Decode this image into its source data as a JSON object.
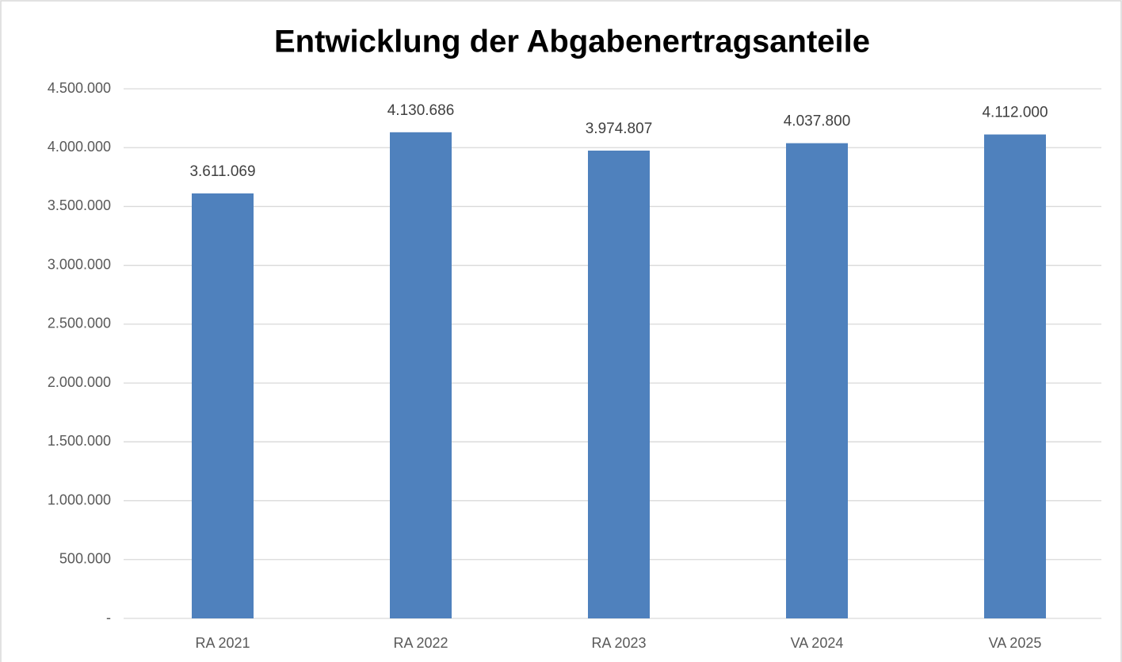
{
  "chart_data": {
    "type": "bar",
    "title": "Entwicklung der Abgabenertragsanteile",
    "categories": [
      "RA 2021",
      "RA 2022",
      "RA 2023",
      "VA 2024",
      "VA 2025"
    ],
    "values": [
      3611069,
      4130686,
      3974807,
      4037800,
      4112000
    ],
    "value_labels": [
      "3.611.069",
      "4.130.686",
      "3.974.807",
      "4.037.800",
      "4.112.000"
    ],
    "color": "#4f81bd",
    "ylim": [
      0,
      4500000
    ],
    "yticks": [
      {
        "value": 0,
        "label": "-"
      },
      {
        "value": 500000,
        "label": "500.000"
      },
      {
        "value": 1000000,
        "label": "1.000.000"
      },
      {
        "value": 1500000,
        "label": "1.500.000"
      },
      {
        "value": 2000000,
        "label": "2.000.000"
      },
      {
        "value": 2500000,
        "label": "2.500.000"
      },
      {
        "value": 3000000,
        "label": "3.000.000"
      },
      {
        "value": 3500000,
        "label": "3.500.000"
      },
      {
        "value": 4000000,
        "label": "4.000.000"
      },
      {
        "value": 4500000,
        "label": "4.500.000"
      }
    ],
    "grid": true
  }
}
